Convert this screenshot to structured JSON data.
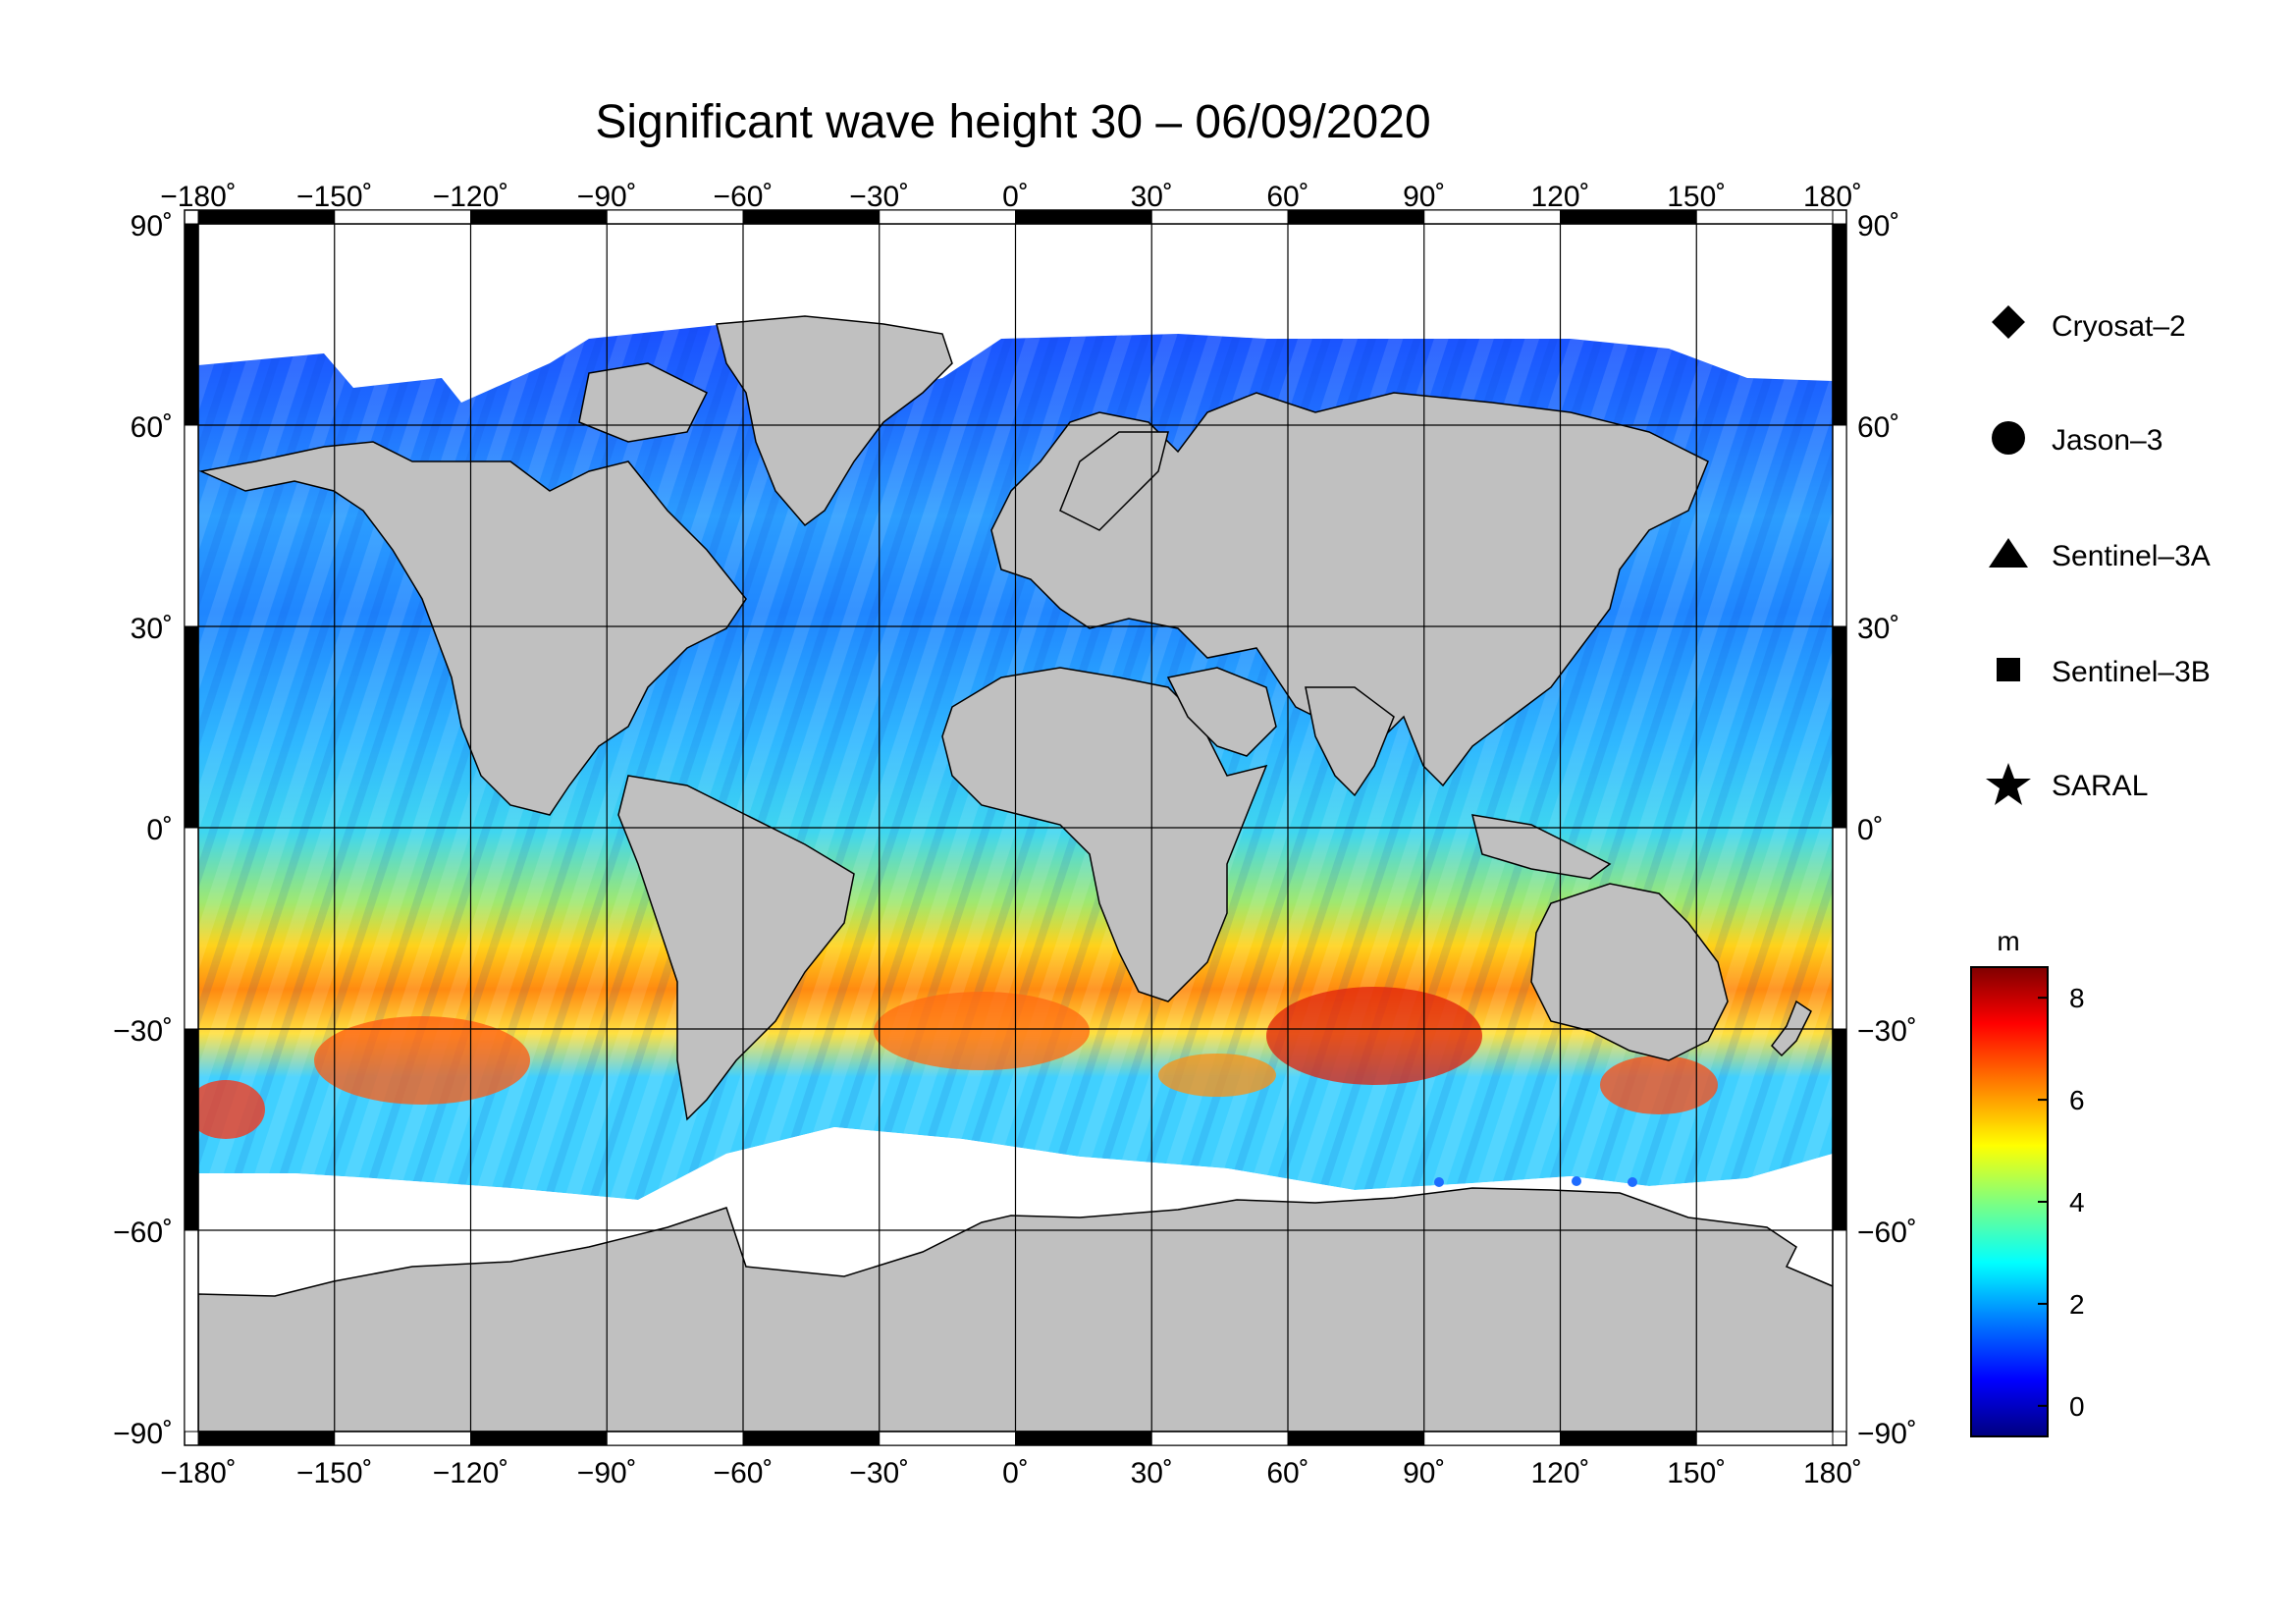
{
  "title": "Significant wave height 30 – 06/09/2020",
  "axes": {
    "lon_ticks": [
      "−180˚",
      "−150˚",
      "−120˚",
      "−90˚",
      "−60˚",
      "−30˚",
      "0˚",
      "30˚",
      "60˚",
      "90˚",
      "120˚",
      "150˚",
      "180˚"
    ],
    "lat_ticks": [
      "90˚",
      "60˚",
      "30˚",
      "0˚",
      "−30˚",
      "−60˚",
      "−90˚"
    ],
    "lon_range": [
      -180,
      180
    ],
    "lat_range": [
      -90,
      90
    ],
    "grid": true
  },
  "legend": {
    "placement": "right",
    "items": [
      {
        "label": "Cryosat–2",
        "symbol": "diamond-icon"
      },
      {
        "label": "Jason–3",
        "symbol": "circle-icon"
      },
      {
        "label": "Sentinel–3A",
        "symbol": "triangle-icon"
      },
      {
        "label": "Sentinel–3B",
        "symbol": "square-icon"
      },
      {
        "label": "SARAL",
        "symbol": "star-icon"
      }
    ]
  },
  "colorbar": {
    "unit": "m",
    "ticks": [
      "8",
      "6",
      "4",
      "2",
      "0"
    ],
    "range": [
      -0.6,
      8.6
    ],
    "colors": [
      "#00007f",
      "#0000ff",
      "#007fff",
      "#00ffff",
      "#7fff7f",
      "#ffff00",
      "#ff7f00",
      "#ff0000",
      "#7f0000"
    ]
  },
  "colors": {
    "land": "#c0c0c0",
    "sea_ice": "#ffffff",
    "grid": "#000000"
  }
}
